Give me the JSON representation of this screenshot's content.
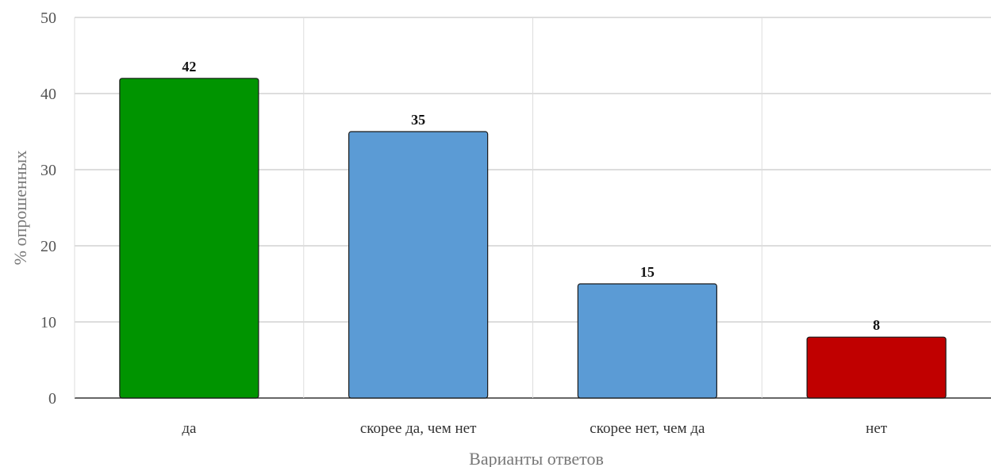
{
  "chart_data": {
    "type": "bar",
    "title": "",
    "xlabel": "Варианты ответов",
    "ylabel": "% опрошенных",
    "categories": [
      "да",
      "скорее да, чем нет",
      "скорее нет, чем да",
      "нет"
    ],
    "values": [
      42,
      35,
      15,
      8
    ],
    "bar_colors": [
      "#009400",
      "#5b9bd5",
      "#5b9bd5",
      "#c00000"
    ],
    "ylim": [
      0,
      50
    ],
    "yticks": [
      0,
      10,
      20,
      30,
      40,
      50
    ],
    "grid": true,
    "legend": "none"
  }
}
